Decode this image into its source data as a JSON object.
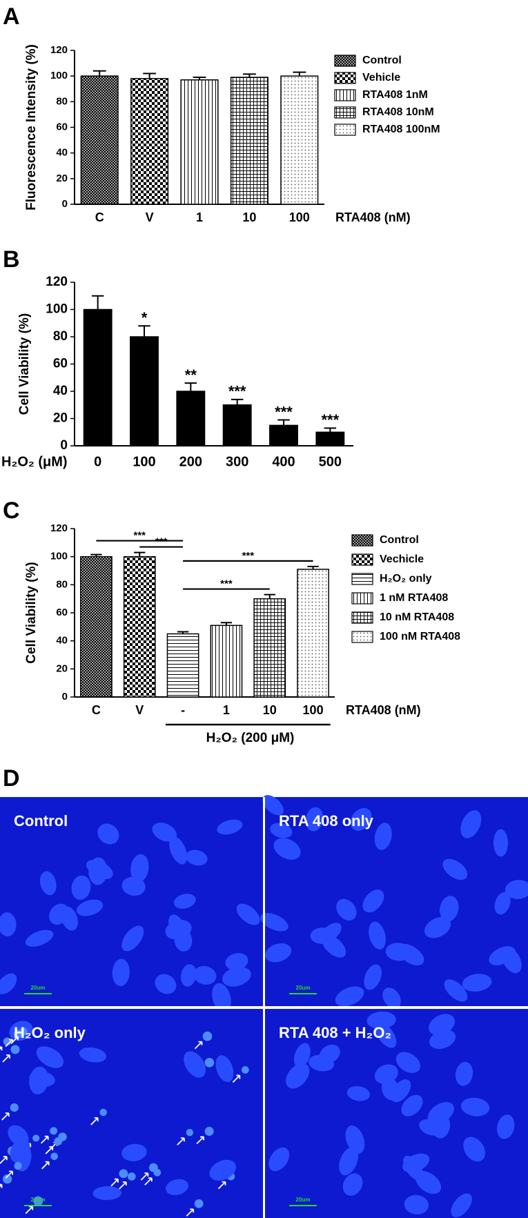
{
  "chart_data": [
    {
      "type": "bar",
      "panel": "A",
      "ylabel": "Fluorescence Intensity (%)",
      "xlabel": "RTA408 (nM)",
      "categories": [
        "C",
        "V",
        "1",
        "10",
        "100"
      ],
      "values": [
        100,
        98,
        97,
        99,
        100
      ],
      "errors": [
        4,
        4,
        2,
        2.5,
        3
      ],
      "legend": [
        "Control",
        "Vehicle",
        "RTA408 1nM",
        "RTA408 10nM",
        "RTA408 100nM"
      ],
      "ylim": [
        0,
        120
      ],
      "yticks": [
        0,
        20,
        40,
        60,
        80,
        100,
        120
      ]
    },
    {
      "type": "bar",
      "panel": "B",
      "ylabel": "Cell Viability (%)",
      "xlabel": "H₂O₂ (μM)",
      "color": "#000000",
      "categories": [
        "0",
        "100",
        "200",
        "300",
        "400",
        "500"
      ],
      "values": [
        100,
        80,
        40,
        30,
        15,
        10
      ],
      "errors": [
        10,
        8,
        6,
        4,
        4,
        3
      ],
      "annotations": [
        null,
        "*",
        "**",
        "***",
        "***",
        "***"
      ],
      "ylim": [
        0,
        120
      ],
      "yticks": [
        0,
        20,
        40,
        60,
        80,
        100,
        120
      ]
    },
    {
      "type": "bar",
      "panel": "C",
      "ylabel": "Cell Viability (%)",
      "xlabel": "RTA408 (nM)",
      "group_label": "H₂O₂ (200 μM)",
      "categories": [
        "C",
        "V",
        "-",
        "1",
        "10",
        "100"
      ],
      "values": [
        100,
        100,
        45,
        51,
        70,
        91
      ],
      "errors": [
        1.5,
        3,
        1.5,
        2,
        3,
        2
      ],
      "legend": [
        "Control",
        "Vechicle",
        "H₂O₂ only",
        "1 nM RTA408",
        "10 nM RTA408",
        "100 nM RTA408"
      ],
      "brackets": [
        {
          "from": 1,
          "to": 2,
          "label": "***"
        },
        {
          "from": 0,
          "to": 2,
          "label": "***"
        },
        {
          "from": 2,
          "to": 4,
          "label": "***"
        },
        {
          "from": 2,
          "to": 5,
          "label": "***"
        }
      ],
      "ylim": [
        0,
        120
      ],
      "yticks": [
        0,
        20,
        40,
        60,
        80,
        100,
        120
      ]
    }
  ],
  "image_panel": {
    "panel": "D",
    "images": [
      {
        "label": "Control",
        "scale_bar": "20um"
      },
      {
        "label": "RTA 408 only",
        "scale_bar": "20um"
      },
      {
        "label": "H₂O₂ only",
        "scale_bar": "20um"
      },
      {
        "label": "RTA 408 + H₂O₂",
        "scale_bar": "20um"
      }
    ]
  }
}
